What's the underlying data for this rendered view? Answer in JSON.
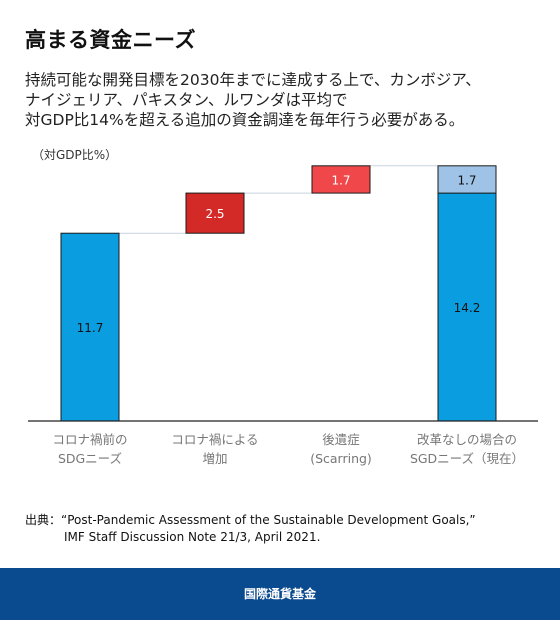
{
  "title": "高まる資金ニーズ",
  "subtitle": [
    "持続可能な開発目標を2030年までに達成する上で、カンボジア、",
    "ナイジェリア、パキスタン、ルワンダは平均で",
    "対GDP比14%を超える追加の資金調達を毎年行う必要がある。"
  ],
  "unit_label": "（対GDP比%）",
  "source": {
    "prefix": "出典：",
    "line1": "“Post-Pandemic Assessment of the Sustainable Development Goals,”",
    "line2": "IMF Staff Discussion Note 21/3, April 2021."
  },
  "footer": "国際通貨基金",
  "chart_data": {
    "type": "bar",
    "subtype": "waterfall",
    "categories": [
      [
        "コロナ禍前の",
        "SDGニーズ"
      ],
      [
        "コロナ禍による",
        "増加"
      ],
      [
        "後遺症",
        "(Scarring)"
      ],
      [
        "改革なしの場合の",
        "SGDニーズ（現在）"
      ]
    ],
    "bars": [
      {
        "base": 0,
        "value": 11.7,
        "label": "11.7",
        "color": "#0a9de0"
      },
      {
        "base": 11.7,
        "value": 2.5,
        "label": "2.5",
        "color": "#d42a27"
      },
      {
        "base": 14.2,
        "value": 1.7,
        "label": "1.7",
        "color": "#f0484a"
      },
      {
        "base": 0,
        "value": 14.2,
        "label": "14.2",
        "color": "#0a9de0"
      },
      {
        "base": 14.2,
        "value": 1.7,
        "label": "1.7",
        "color": "#9ec3e6"
      }
    ],
    "ylim": [
      0,
      17.5
    ],
    "colors": {
      "pre": "#0a9de0",
      "covid": "#d42a27",
      "scarring": "#f0484a",
      "light": "#9ec3e6"
    }
  }
}
